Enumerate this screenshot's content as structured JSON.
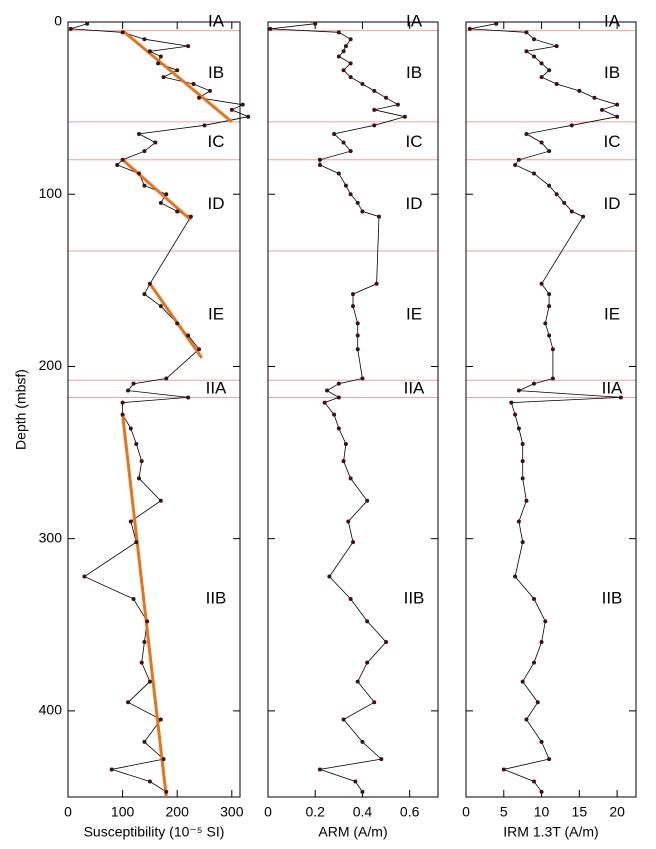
{
  "chart_data": [
    {
      "type": "line",
      "xlabel": "Susceptibility (10⁻⁵ SI)",
      "ylabel": "Depth (mbsf)",
      "xlim": [
        0,
        315
      ],
      "xticks": [
        0,
        100,
        200,
        300
      ],
      "ylim": [
        0,
        450
      ],
      "yticks": [
        0,
        100,
        200,
        300,
        400
      ],
      "y": [
        1,
        4,
        6,
        10,
        14,
        17,
        20,
        24,
        28,
        32,
        36,
        40,
        44,
        48,
        51,
        55,
        60,
        65,
        70,
        75,
        80,
        83,
        88,
        95,
        100,
        105,
        110,
        113,
        152,
        158,
        165,
        175,
        182,
        190,
        207,
        210,
        214,
        218,
        221,
        228,
        236,
        245,
        255,
        265,
        278,
        290,
        302,
        322,
        335,
        348,
        360,
        372,
        383,
        395,
        405,
        418,
        428,
        434,
        441,
        447
      ],
      "x": [
        35,
        5,
        100,
        140,
        220,
        150,
        170,
        165,
        200,
        175,
        230,
        260,
        240,
        320,
        300,
        330,
        250,
        130,
        160,
        140,
        100,
        90,
        130,
        140,
        180,
        170,
        200,
        225,
        150,
        140,
        170,
        200,
        220,
        240,
        180,
        120,
        110,
        220,
        100,
        100,
        115,
        125,
        135,
        130,
        170,
        115,
        125,
        30,
        120,
        145,
        140,
        135,
        150,
        110,
        170,
        140,
        175,
        80,
        150,
        180
      ],
      "color": "#000000",
      "point_color": "#3a1212",
      "trend_color": "#e8731a",
      "trend_lines": [
        {
          "x": [
            100,
            300
          ],
          "y": [
            5,
            58
          ]
        },
        {
          "x": [
            100,
            225
          ],
          "y": [
            80,
            115
          ]
        },
        {
          "x": [
            150,
            245
          ],
          "y": [
            152,
            195
          ]
        },
        {
          "x": [
            100,
            180
          ],
          "y": [
            228,
            450
          ]
        }
      ]
    },
    {
      "type": "line",
      "xlabel": "ARM (A/m)",
      "xlim": [
        0,
        0.72
      ],
      "xticks": [
        0,
        0.2,
        0.4,
        0.6
      ],
      "ylim": [
        0,
        450
      ],
      "yticks": [
        0,
        100,
        200,
        300,
        400
      ],
      "y": [
        1,
        4,
        6,
        10,
        14,
        17,
        20,
        24,
        28,
        32,
        36,
        40,
        44,
        48,
        51,
        55,
        60,
        65,
        70,
        75,
        80,
        83,
        88,
        95,
        100,
        105,
        110,
        113,
        152,
        158,
        165,
        175,
        182,
        190,
        207,
        210,
        214,
        218,
        221,
        228,
        236,
        245,
        255,
        265,
        278,
        290,
        302,
        322,
        335,
        348,
        360,
        372,
        383,
        395,
        405,
        418,
        428,
        434,
        441,
        447
      ],
      "x": [
        0.2,
        0.01,
        0.3,
        0.35,
        0.33,
        0.32,
        0.3,
        0.35,
        0.32,
        0.35,
        0.4,
        0.45,
        0.5,
        0.55,
        0.45,
        0.58,
        0.45,
        0.28,
        0.32,
        0.35,
        0.22,
        0.22,
        0.3,
        0.33,
        0.35,
        0.38,
        0.4,
        0.47,
        0.46,
        0.36,
        0.36,
        0.38,
        0.38,
        0.38,
        0.4,
        0.3,
        0.25,
        0.3,
        0.24,
        0.28,
        0.3,
        0.33,
        0.32,
        0.35,
        0.42,
        0.34,
        0.36,
        0.26,
        0.35,
        0.42,
        0.5,
        0.42,
        0.38,
        0.45,
        0.32,
        0.4,
        0.48,
        0.22,
        0.37,
        0.4
      ],
      "color": "#000000",
      "point_color": "#3a1212"
    },
    {
      "type": "line",
      "xlabel": "IRM 1.3T (A/m)",
      "xlim": [
        0,
        22.5
      ],
      "xticks": [
        0,
        5,
        10,
        15,
        20
      ],
      "ylim": [
        0,
        450
      ],
      "yticks": [
        0,
        100,
        200,
        300,
        400
      ],
      "y": [
        1,
        4,
        6,
        10,
        14,
        17,
        20,
        24,
        28,
        32,
        36,
        40,
        44,
        48,
        51,
        55,
        60,
        65,
        70,
        75,
        80,
        83,
        88,
        95,
        100,
        105,
        110,
        113,
        152,
        158,
        165,
        175,
        182,
        190,
        207,
        210,
        214,
        218,
        221,
        228,
        236,
        245,
        255,
        265,
        278,
        290,
        302,
        322,
        335,
        348,
        360,
        372,
        383,
        395,
        405,
        418,
        428,
        434,
        441,
        447
      ],
      "x": [
        4,
        0.5,
        8,
        9,
        12,
        8,
        9,
        10,
        11,
        10,
        12,
        15,
        17,
        20,
        18,
        20,
        14,
        8,
        10,
        11,
        7,
        6.5,
        9,
        11,
        12,
        13,
        14,
        15.5,
        10,
        11,
        11,
        10.5,
        11,
        11.5,
        11.5,
        9,
        7,
        20.5,
        6,
        6.5,
        7,
        7.5,
        7.5,
        7.5,
        8,
        7,
        7.5,
        6.5,
        9,
        10.5,
        10,
        9,
        7.5,
        9.5,
        8,
        10,
        11,
        5,
        9,
        10
      ],
      "color": "#000000",
      "point_color": "#3a1212"
    }
  ],
  "units": {
    "boundary_color": "#f2a0a0",
    "label_color": "#1a1aaa",
    "boundaries": [
      5,
      58,
      80,
      133,
      208,
      218
    ],
    "labels": [
      {
        "label": "IA",
        "depth": 0
      },
      {
        "label": "IB",
        "depth": 30
      },
      {
        "label": "IC",
        "depth": 70
      },
      {
        "label": "ID",
        "depth": 106
      },
      {
        "label": "IE",
        "depth": 170
      },
      {
        "label": "IIA",
        "depth": 213
      },
      {
        "label": "IIB",
        "depth": 335
      }
    ]
  }
}
